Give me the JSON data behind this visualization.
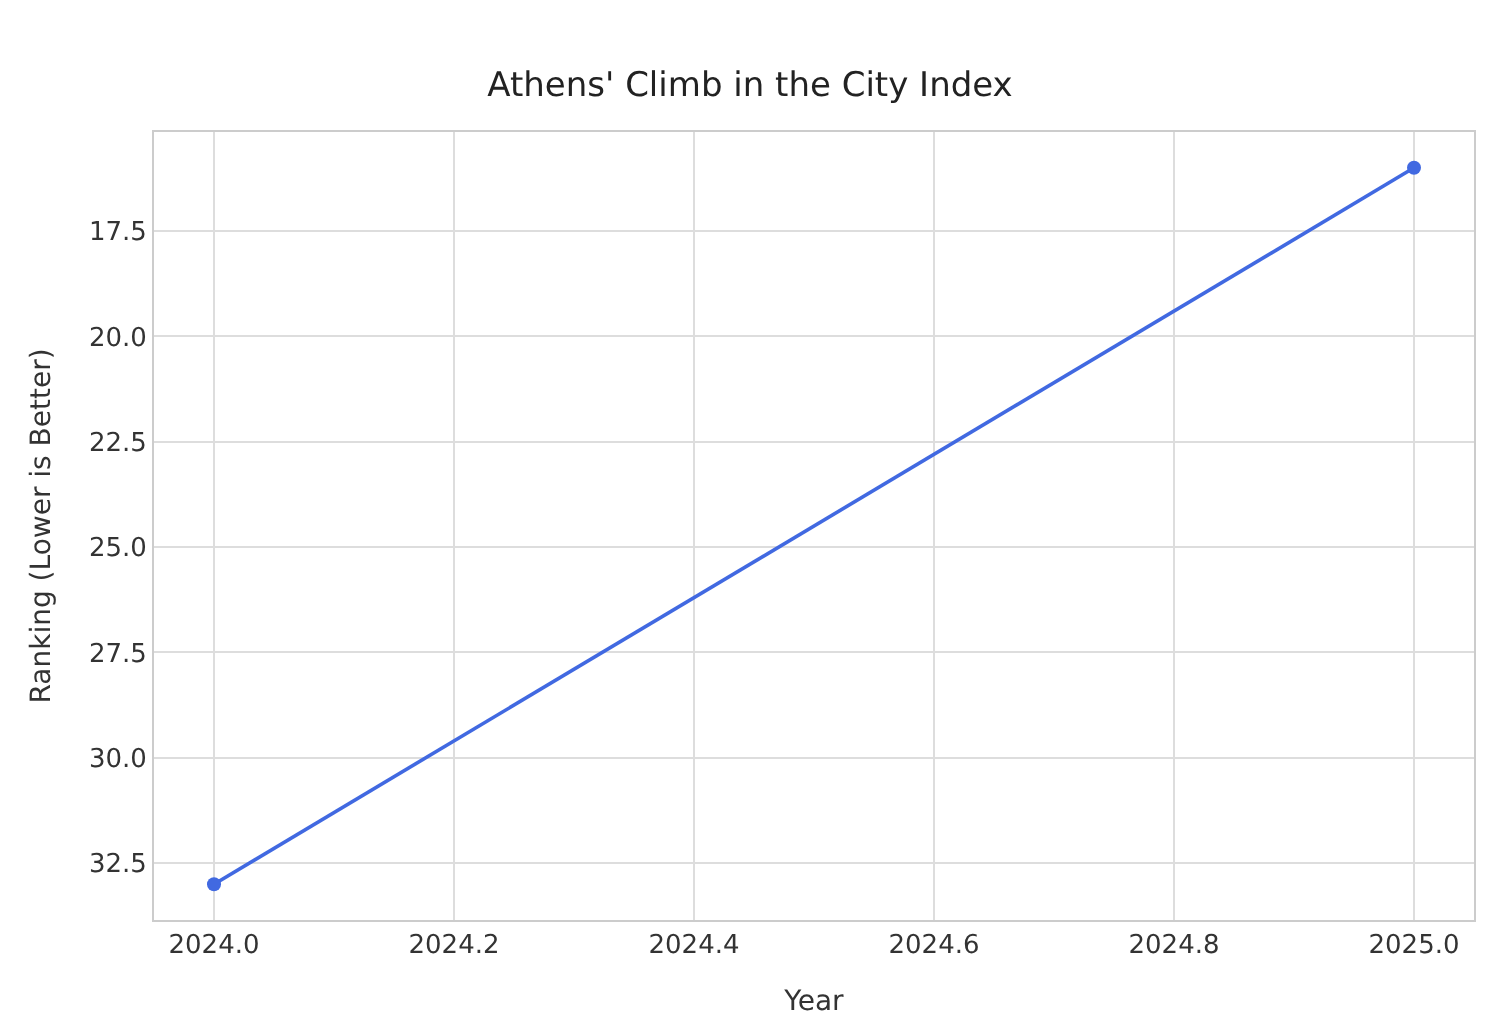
{
  "chart_data": {
    "type": "line",
    "title": "Athens' Climb in the City Index",
    "xlabel": "Year",
    "ylabel": "Ranking (Lower is Better)",
    "x": [
      2024.0,
      2025.0
    ],
    "series": [
      {
        "color": "#4169e1",
        "values": [
          33,
          16
        ]
      }
    ],
    "xlim": [
      2023.95,
      2025.05
    ],
    "xticks": [
      {
        "value": 2024.0,
        "label": "2024.0"
      },
      2024.2,
      2024.4,
      2024.6,
      2024.8,
      {
        "value": 2025.0,
        "label": "2025.0"
      }
    ],
    "ylim": [
      33.85,
      15.15
    ],
    "yticks": [
      17.5,
      {
        "value": 20.0,
        "label": "20.0"
      },
      22.5,
      {
        "value": 25.0,
        "label": "25.0"
      },
      27.5,
      {
        "value": 30.0,
        "label": "30.0"
      },
      32.5
    ],
    "grid": true,
    "marker": "circle",
    "line_style": "solid"
  }
}
